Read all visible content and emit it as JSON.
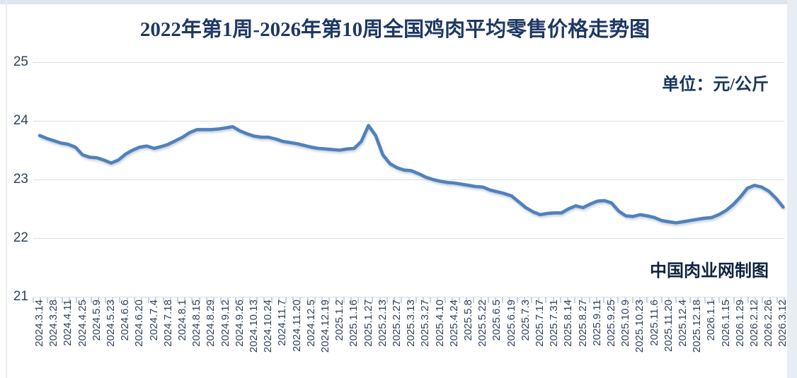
{
  "page": {
    "title": "2022年第1周-2026年第10周全国鸡肉平均零售价格走势图",
    "unit_label": "单位：元/公斤",
    "attribution": "中国肉业网制图"
  },
  "colors": {
    "title_text": "#1F3864",
    "unit_text": "#17375E",
    "attribution_text": "#0F2340",
    "axis_text": "#31415C",
    "gridline": "#D8DDE6",
    "tick": "#C9D3DF",
    "series_line": "#4F81BD"
  },
  "chart_data": {
    "type": "line",
    "title": "2022年第1周-2026年第10周全国鸡肉平均零售价格走势图",
    "ylabel": "元/公斤",
    "ylim": [
      21,
      25
    ],
    "yticks": [
      25,
      24,
      23,
      22,
      21
    ],
    "grid": "horizontal",
    "legend_position": "none",
    "points_per_label": 2,
    "categories": [
      "2024.3.14",
      "2024.3.28",
      "2024.4.11",
      "2024.4.25",
      "2024.5.9",
      "2024.5.23",
      "2024.6.6",
      "2024.6.20",
      "2024.7.4",
      "2024.7.18",
      "2024.8.1",
      "2024.8.15",
      "2024.8.29",
      "2024.9.12",
      "2024.9.26",
      "2024.10.13",
      "2024.10.24",
      "2024.11.7",
      "2024.11.20",
      "2024.12.5",
      "2024.12.19",
      "2025.1.2",
      "2025.1.16",
      "2025.1.27",
      "2025.2.13",
      "2025.2.27",
      "2025.3.13",
      "2025.3.27",
      "2025.4.10",
      "2025.4.24",
      "2025.5.8",
      "2025.5.22",
      "2025.6.5",
      "2025.6.19",
      "2025.7.3",
      "2025.7.17",
      "2025.7.31",
      "2025.8.14",
      "2025.8.27",
      "2025.9.11",
      "2025.9.25",
      "2025.10.9",
      "2025.10.23",
      "2025.11.6",
      "2025.11.20",
      "2025.12.4",
      "2025.12.18",
      "2026.1.1",
      "2026.1.15",
      "2026.1.29",
      "2026.2.12",
      "2026.2.26",
      "2026.3.12"
    ],
    "series": [
      {
        "name": "全国鸡肉平均零售价格",
        "values": [
          23.75,
          23.7,
          23.66,
          23.62,
          23.6,
          23.55,
          23.42,
          23.38,
          23.37,
          23.33,
          23.28,
          23.33,
          23.43,
          23.5,
          23.55,
          23.57,
          23.53,
          23.56,
          23.6,
          23.66,
          23.72,
          23.8,
          23.85,
          23.85,
          23.85,
          23.86,
          23.88,
          23.9,
          23.83,
          23.78,
          23.74,
          23.72,
          23.72,
          23.69,
          23.65,
          23.63,
          23.61,
          23.58,
          23.55,
          23.53,
          23.52,
          23.51,
          23.5,
          23.52,
          23.53,
          23.65,
          23.92,
          23.75,
          23.42,
          23.27,
          23.2,
          23.16,
          23.15,
          23.1,
          23.04,
          23.0,
          22.97,
          22.95,
          22.94,
          22.92,
          22.9,
          22.88,
          22.87,
          22.82,
          22.79,
          22.76,
          22.72,
          22.62,
          22.52,
          22.45,
          22.4,
          22.42,
          22.43,
          22.43,
          22.5,
          22.55,
          22.52,
          22.58,
          22.63,
          22.64,
          22.6,
          22.46,
          22.38,
          22.37,
          22.4,
          22.38,
          22.35,
          22.3,
          22.28,
          22.26,
          22.28,
          22.3,
          22.32,
          22.34,
          22.35,
          22.4,
          22.47,
          22.57,
          22.7,
          22.85,
          22.9,
          22.87,
          22.8,
          22.68,
          22.53
        ]
      }
    ]
  }
}
